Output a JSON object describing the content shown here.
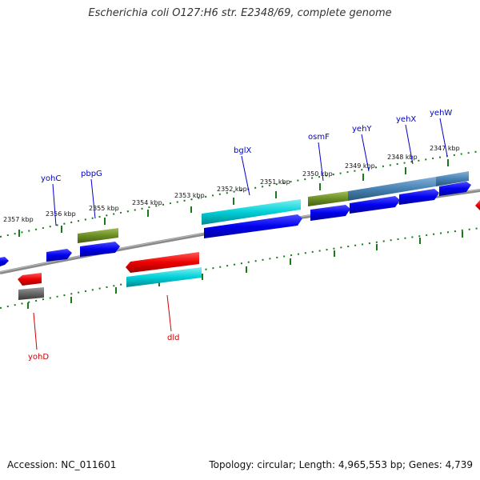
{
  "title": "Escherichia coli O127:H6 str. E2348/69, complete genome",
  "footer": {
    "accession": "Accession: NC_011601",
    "summary": "Topology: circular; Length: 4,965,553 bp; Genes: 4,739"
  },
  "ruler_labels": [
    "2357 kbp",
    "2356 kbp",
    "2355 kbp",
    "2354 kbp",
    "2353 kbp",
    "2352 kbp",
    "2351 kbp",
    "2350 kbp",
    "2349 kbp",
    "2348 kbp",
    "2347 kbp"
  ],
  "gene_labels": {
    "yohC": "yohC",
    "pbpG": "pbpG",
    "bglX": "bglX",
    "osmF": "osmF",
    "yehY": "yehY",
    "yehX": "yehX",
    "yehW": "yehW",
    "yohD": "yohD",
    "dld": "dld"
  },
  "colors": {
    "forward_cds": "#0000ee",
    "reverse_cds": "#ee0000",
    "gene_forward_label": "#0000cc",
    "gene_reverse_label": "#cc0000",
    "olive": "#6b8e23",
    "cyan": "#00ced1",
    "steelblue": "#4682b4",
    "grey": "#666666",
    "tick": "#1a7a1a"
  }
}
